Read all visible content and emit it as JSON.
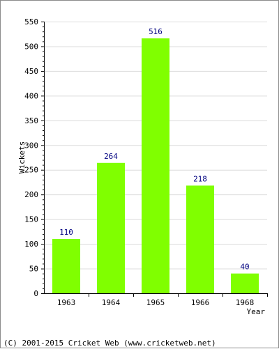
{
  "chart_data": {
    "type": "bar",
    "categories": [
      "1963",
      "1964",
      "1965",
      "1966",
      "1968"
    ],
    "values": [
      110,
      264,
      516,
      218,
      40
    ],
    "data_labels": [
      "110",
      "264",
      "516",
      "218",
      "40"
    ],
    "xlabel": "Year",
    "ylabel": "Wickets",
    "ylim": [
      0,
      550
    ],
    "yticks": [
      "0",
      "50",
      "100",
      "150",
      "200",
      "250",
      "300",
      "350",
      "400",
      "450",
      "500",
      "550"
    ],
    "grid": true,
    "bar_color": "#80ff00",
    "label_color": "#000080",
    "grid_color": "#dcdcdc"
  },
  "footer": {
    "copyright": "(C) 2001-2015 Cricket Web (www.cricketweb.net)"
  }
}
